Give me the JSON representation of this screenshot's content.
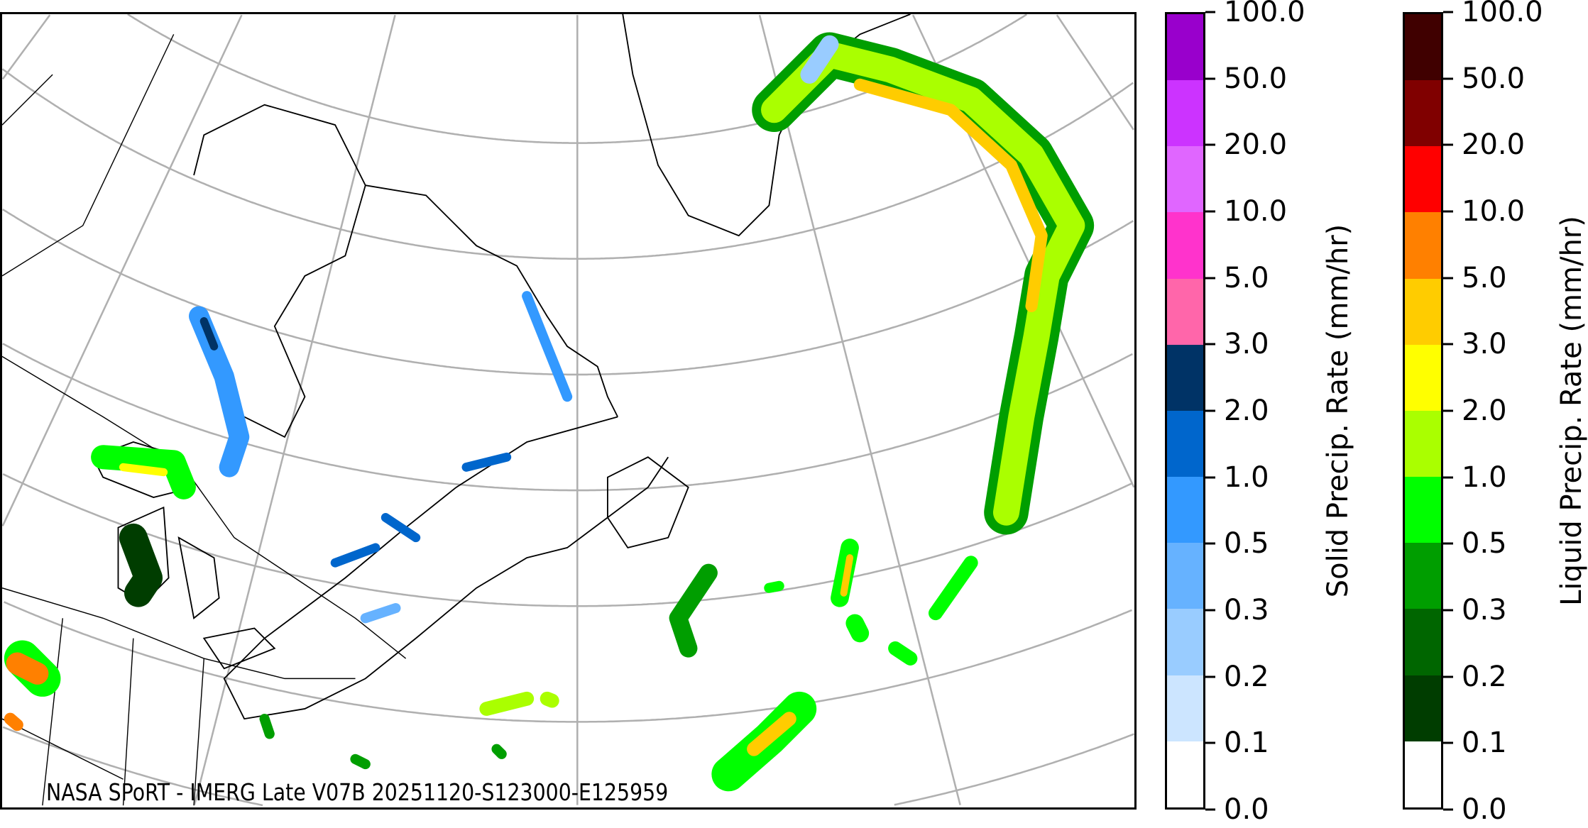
{
  "map": {
    "credit": "NASA SPoRT - IMERG Late V07B 20251120-S123000-E125959",
    "graticule_color": "#b0b0b0",
    "coastline_color": "#000000"
  },
  "colorbars": [
    {
      "label": "Solid Precip. Rate (mm/hr)",
      "ticks": [
        "0.0",
        "0.1",
        "0.2",
        "0.3",
        "0.5",
        "1.0",
        "2.0",
        "3.0",
        "5.0",
        "10.0",
        "20.0",
        "50.0",
        "100.0"
      ],
      "colors": [
        "#ffffff",
        "#cce5ff",
        "#99ccff",
        "#66b2ff",
        "#3399ff",
        "#0066cc",
        "#003366",
        "#ff66aa",
        "#ff33cc",
        "#e066ff",
        "#cc33ff",
        "#9900cc"
      ]
    },
    {
      "label": "Liquid Precip. Rate (mm/hr)",
      "ticks": [
        "0.0",
        "0.1",
        "0.2",
        "0.3",
        "0.5",
        "1.0",
        "2.0",
        "3.0",
        "5.0",
        "10.0",
        "20.0",
        "50.0",
        "100.0"
      ],
      "colors": [
        "#ffffff",
        "#003d00",
        "#006600",
        "#009e00",
        "#00ff00",
        "#aaff00",
        "#ffff00",
        "#ffcc00",
        "#ff8000",
        "#ff0000",
        "#800000",
        "#400000"
      ]
    }
  ]
}
